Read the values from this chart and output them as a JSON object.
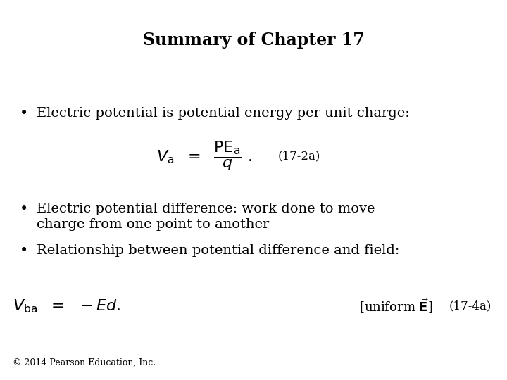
{
  "title": "Summary of Chapter 17",
  "title_fontsize": 17,
  "background_color": "#ffffff",
  "text_color": "#000000",
  "bullet1": "Electric potential is potential energy per unit charge:",
  "bullet2_line1": "Electric potential difference: work done to move",
  "bullet2_line2": "charge from one point to another",
  "bullet3": "Relationship between potential difference and field:",
  "eq_label1": "(17-2a)",
  "eq_label2": "(17-4a)",
  "copyright": "© 2014 Pearson Education, Inc.",
  "bullet_fontsize": 14,
  "eq_fontsize": 14,
  "label_fontsize": 12,
  "copyright_fontsize": 9,
  "font_family": "serif"
}
